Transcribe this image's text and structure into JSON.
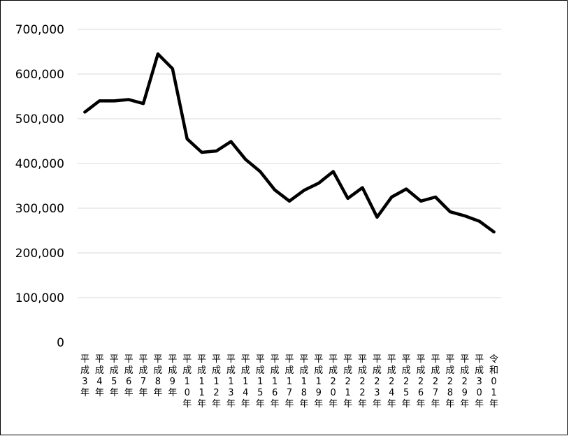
{
  "chart_data": {
    "type": "line",
    "title": "",
    "xlabel": "",
    "ylabel": "",
    "ylim": [
      0,
      700000
    ],
    "yticks": [
      "0",
      "100,000",
      "200,000",
      "300,000",
      "400,000",
      "500,000",
      "600,000",
      "700,000"
    ],
    "grid": true,
    "legend": "none",
    "line_color": "#000000",
    "grid_color": "#d9d9d9",
    "categories": [
      "平成3年",
      "平成4年",
      "平成5年",
      "平成6年",
      "平成7年",
      "平成8年",
      "平成9年",
      "平成10年",
      "平成11年",
      "平成12年",
      "平成13年",
      "平成14年",
      "平成15年",
      "平成16年",
      "平成17年",
      "平成18年",
      "平成19年",
      "平成20年",
      "平成21年",
      "平成22年",
      "平成23年",
      "平成24年",
      "平成25年",
      "平成26年",
      "平成27年",
      "平成28年",
      "平成29年",
      "平成30年",
      "令和元年"
    ],
    "series": [
      {
        "values": [
          515000,
          540000,
          540000,
          543000,
          534000,
          645000,
          612000,
          455000,
          425000,
          428000,
          449000,
          409000,
          382000,
          341000,
          316000,
          340000,
          356000,
          382000,
          322000,
          346000,
          280000,
          325000,
          343000,
          316000,
          325000,
          292000,
          283000,
          271000,
          247000
        ]
      }
    ]
  }
}
